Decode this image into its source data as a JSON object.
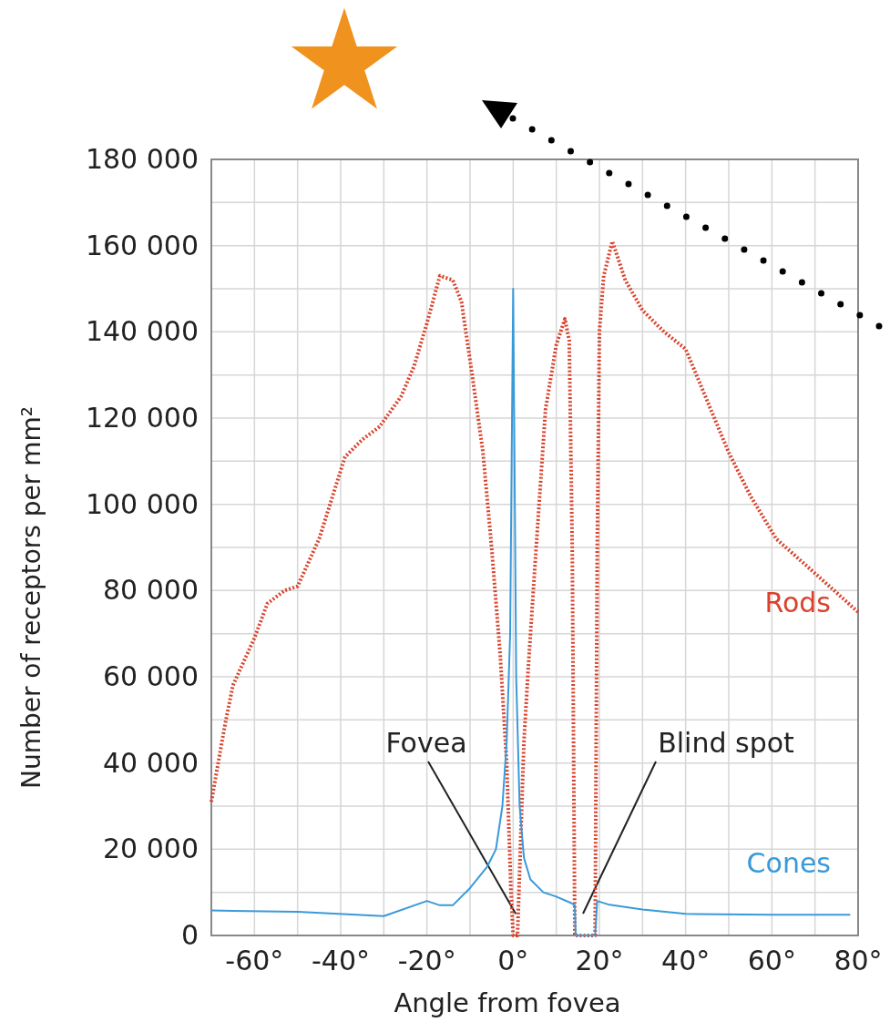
{
  "chart_data": {
    "type": "line",
    "xlabel": "Angle from fovea",
    "ylabel": "Number of receptors per mm²",
    "xlim": [
      -70,
      80
    ],
    "ylim": [
      0,
      180000
    ],
    "xticks": [
      {
        "value": -60,
        "label": "-60°"
      },
      {
        "value": -50,
        "label": null
      },
      {
        "value": -40,
        "label": "-40°"
      },
      {
        "value": -30,
        "label": null
      },
      {
        "value": -20,
        "label": "-20°"
      },
      {
        "value": -10,
        "label": null
      },
      {
        "value": 0,
        "label": "0°"
      },
      {
        "value": 10,
        "label": null
      },
      {
        "value": 20,
        "label": "20°"
      },
      {
        "value": 30,
        "label": null
      },
      {
        "value": 40,
        "label": "40°"
      },
      {
        "value": 50,
        "label": null
      },
      {
        "value": 60,
        "label": "60°"
      },
      {
        "value": 70,
        "label": null
      },
      {
        "value": 80,
        "label": "80°"
      }
    ],
    "yticks": [
      0,
      {
        "value": 10000,
        "label": null
      },
      {
        "value": 20000,
        "label": "20 000"
      },
      {
        "value": 30000,
        "label": null
      },
      {
        "value": 40000,
        "label": "40 000"
      },
      {
        "value": 50000,
        "label": null
      },
      {
        "value": 60000,
        "label": "60 000"
      },
      {
        "value": 70000,
        "label": null
      },
      {
        "value": 80000,
        "label": "80 000"
      },
      {
        "value": 90000,
        "label": null
      },
      {
        "value": 100000,
        "label": "100 000"
      },
      {
        "value": 110000,
        "label": null
      },
      {
        "value": 120000,
        "label": "120 000"
      },
      {
        "value": 130000,
        "label": null
      },
      {
        "value": 140000,
        "label": "140 000"
      },
      {
        "value": 150000,
        "label": null
      },
      {
        "value": 160000,
        "label": "160 000"
      },
      {
        "value": 170000,
        "label": null
      },
      {
        "value": 180000,
        "label": "180 000"
      }
    ],
    "grid": true,
    "marker": "none",
    "series": [
      {
        "name": "Rods",
        "color": "#d9412b",
        "line_style": "dotted",
        "x": [
          -70,
          -67,
          -65,
          -60,
          -57,
          -53,
          -50,
          -45,
          -39,
          -35,
          -31,
          -26,
          -23,
          -20,
          -17,
          -14,
          -12,
          -9.5,
          -7,
          -5,
          -3,
          -1.5,
          -0.5,
          0,
          1,
          1.5,
          2.5,
          3.5,
          5,
          7.5,
          10,
          12,
          13,
          13.7,
          14.3,
          19,
          19.5,
          20,
          21,
          23,
          26,
          30,
          35,
          40,
          45,
          50,
          55,
          61,
          70,
          80
        ],
        "values": [
          31000,
          48000,
          58000,
          69000,
          77000,
          80000,
          81000,
          92000,
          111000,
          115000,
          118000,
          125000,
          132000,
          142000,
          153000,
          152000,
          147000,
          130000,
          112000,
          90000,
          65000,
          40000,
          10000,
          0,
          0,
          15000,
          45000,
          62000,
          85000,
          122000,
          137000,
          143000,
          138000,
          90000,
          0,
          0,
          90000,
          140000,
          153000,
          161000,
          152000,
          145000,
          140000,
          136000,
          124000,
          112000,
          102000,
          92000,
          84000,
          75000
        ]
      },
      {
        "name": "Cones",
        "color": "#3a9ad9",
        "line_style": "solid",
        "x": [
          -70,
          -50,
          -30,
          -20,
          -17,
          -14,
          -10,
          -6,
          -4,
          -2.5,
          -1.5,
          -0.7,
          0,
          0.7,
          1.5,
          2.5,
          4,
          7,
          10,
          13.5,
          14.3,
          14.5,
          19,
          19.5,
          22,
          30,
          40,
          60,
          78
        ],
        "values": [
          5800,
          5500,
          4500,
          8000,
          7000,
          7000,
          11000,
          16000,
          20000,
          30000,
          45000,
          70000,
          150000,
          60000,
          30000,
          18000,
          13000,
          10000,
          9000,
          7500,
          7000,
          0,
          0,
          8000,
          7200,
          6000,
          5000,
          4800,
          4800
        ]
      }
    ],
    "annotations": [
      {
        "text": "Fovea",
        "x": 0.6,
        "y": 5000
      },
      "Blind spot"
    ]
  }
}
